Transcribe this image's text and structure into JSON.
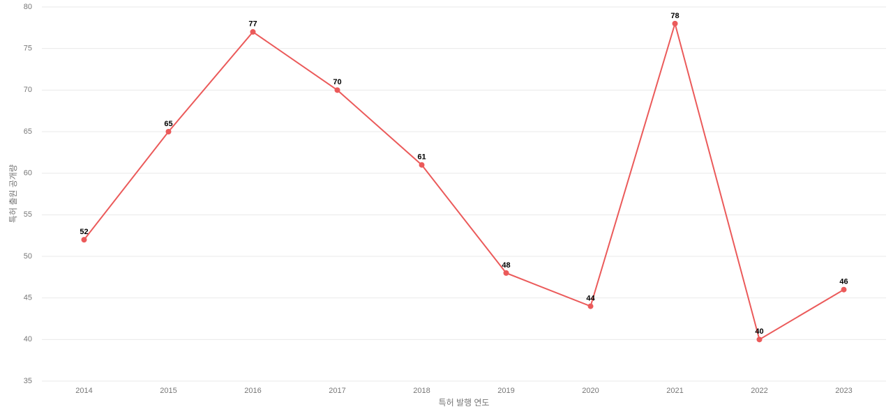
{
  "chart_data": {
    "type": "line",
    "x_label": "특허 발행 연도",
    "y_label": "특허 출원 공개량",
    "categories": [
      "2014",
      "2015",
      "2016",
      "2017",
      "2018",
      "2019",
      "2020",
      "2021",
      "2022",
      "2023"
    ],
    "values": [
      52,
      65,
      77,
      70,
      61,
      48,
      44,
      78,
      40,
      46
    ],
    "color": "#eb5a5a",
    "ylim": [
      35,
      80
    ],
    "yticks": [
      35,
      40,
      45,
      50,
      55,
      60,
      65,
      70,
      75,
      80
    ],
    "grid": true
  }
}
